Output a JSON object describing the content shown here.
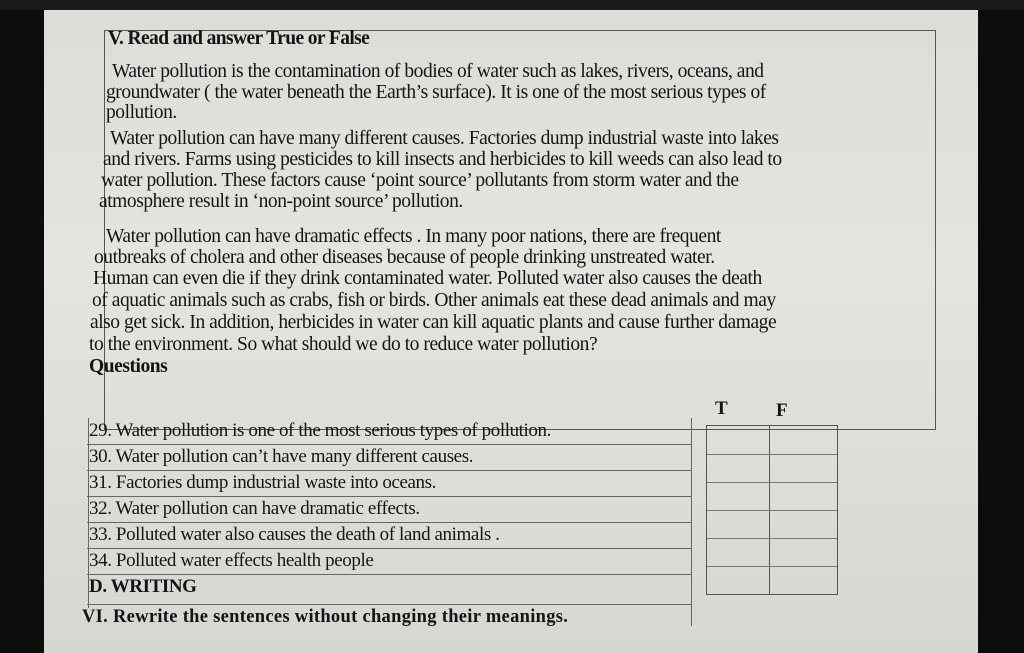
{
  "section_title": "V. Read and answer True or False",
  "passage_lines": [
    "Water pollution is the contamination of bodies of water such as lakes, rivers, oceans, and",
    "groundwater ( the water beneath the Earth’s surface). It is one of the most serious types of",
    "pollution.",
    "Water pollution can have many different causes. Factories dump industrial waste into lakes",
    "and rivers. Farms using pesticides to kill insects and herbicides to kill weeds can also lead to",
    "water pollution. These factors cause ‘point source’ pollutants from storm water and the",
    "atmosphere result in ‘non-point source’ pollution.",
    "Water pollution can have dramatic effects . In many poor nations, there are frequent",
    "outbreaks of cholera and other diseases because  of people drinking unstreated  water.",
    "Human  can even die if they drink contaminated water. Polluted water also causes the death",
    "of aquatic animals such as crabs, fish or birds. Other animals eat these dead animals and may",
    "also get sick. In addition, herbicides in water can kill aquatic plants and cause further damage",
    "to the environment.  So what should we do to reduce water pollution?"
  ],
  "questions_heading": "Questions",
  "tf_headers": {
    "true": "T",
    "false": "F"
  },
  "questions": [
    "29. Water pollution is one of the  most serious types of pollution.",
    "30. Water pollution can’t  have many different causes.",
    "31.  Factories dump industrial waste into  oceans.",
    "32.  Water pollution can have dramatic effects.",
    "33. Polluted water also causes the death of  land animals  .",
    "34. Polluted water effects health people"
  ],
  "writing_heading": "D. WRITING",
  "rewrite_heading": "VI. Rewrite the sentences without changing their meanings."
}
